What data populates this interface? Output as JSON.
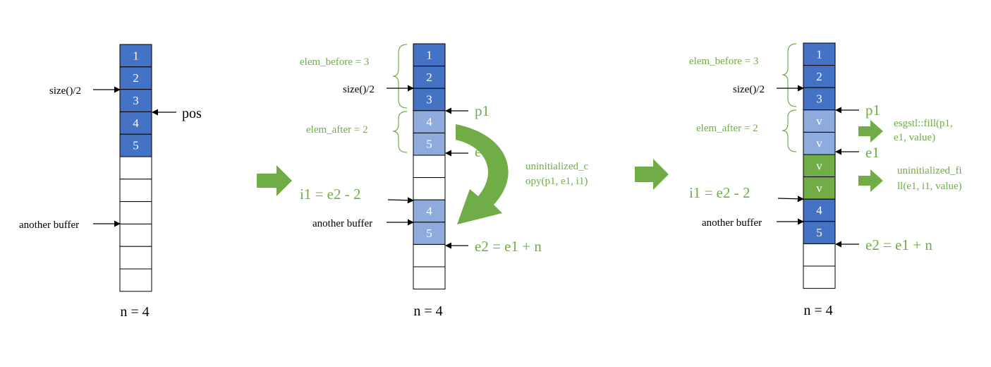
{
  "panels": [
    {
      "id": "p1",
      "cells": [
        "1",
        "2",
        "3",
        "4",
        "5",
        "",
        "",
        "",
        "",
        "",
        ""
      ],
      "fills": [
        "dark",
        "dark",
        "dark",
        "dark",
        "dark",
        "white",
        "white",
        "white",
        "white",
        "white",
        "white"
      ],
      "n_label": "n = 4",
      "labels": {
        "size": "size()/2",
        "pos": "pos",
        "another": "another buffer"
      }
    },
    {
      "id": "p2",
      "cells": [
        "1",
        "2",
        "3",
        "4",
        "5",
        "",
        "",
        "4",
        "5",
        "",
        ""
      ],
      "fills": [
        "dark",
        "dark",
        "dark",
        "light",
        "light",
        "white",
        "white",
        "light",
        "light",
        "white",
        "white"
      ],
      "n_label": "n = 4",
      "labels": {
        "elem_before": "elem_before = 3",
        "size": "size()/2",
        "elem_after": "elem_after = 2",
        "p1": "p1",
        "e1": "e1",
        "i1": "i1 = e2 - 2",
        "another": "another buffer",
        "e2": "e2 = e1 + n",
        "op_line1": "uninitialized_c",
        "op_line2": "opy(p1, e1, i1)"
      }
    },
    {
      "id": "p3",
      "cells": [
        "1",
        "2",
        "3",
        "v",
        "v",
        "v",
        "v",
        "4",
        "5",
        "",
        ""
      ],
      "fills": [
        "dark",
        "dark",
        "dark",
        "light",
        "light",
        "green",
        "green",
        "dark",
        "dark",
        "white",
        "white"
      ],
      "n_label": "n = 4",
      "labels": {
        "elem_before": "elem_before = 3",
        "size": "size()/2",
        "elem_after": "elem_after = 2",
        "p1": "p1",
        "e1": "e1",
        "i1": "i1 = e2 - 2",
        "another": "another buffer",
        "e2": "e2 = e1 + n",
        "op1_line1": "esgstl::fill(p1,",
        "op1_line2": "e1, value)",
        "op2_line1": "uninitialized_fi",
        "op2_line2": "ll(e1, i1, value)"
      }
    }
  ],
  "colors": {
    "dark": "#4472c4",
    "light": "#8faadc",
    "green": "#70ad47",
    "white": "#ffffff"
  }
}
